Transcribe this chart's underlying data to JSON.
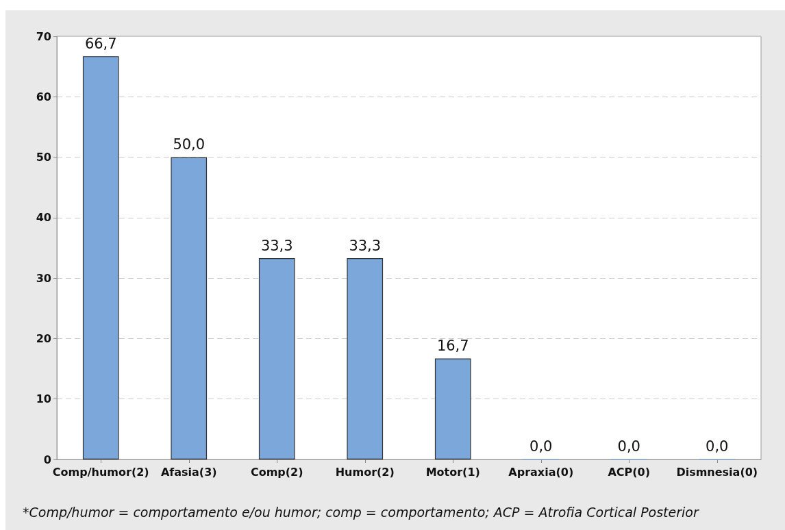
{
  "chart_data": {
    "type": "bar",
    "categories": [
      "Comp/humor(2)",
      "Afasia(3)",
      "Comp(2)",
      "Humor(2)",
      "Motor(1)",
      "Apraxia(0)",
      "ACP(0)",
      "Dismnesia(0)"
    ],
    "values": [
      66.7,
      50.0,
      33.3,
      33.3,
      16.7,
      0.0,
      0.0,
      0.0
    ],
    "value_labels": [
      "66,7",
      "50,0",
      "33,3",
      "33,3",
      "16,7",
      "0,0",
      "0,0",
      "0,0"
    ],
    "color": "#7ba7da",
    "ylim": [
      0,
      70
    ],
    "yticks": [
      0,
      10,
      20,
      30,
      40,
      50,
      60,
      70
    ],
    "grid": "y",
    "annotations": [
      "*Comp/humor = comportamento e/ou humor; comp = comportamento; ACP = Atrofia Cortical Posterior"
    ]
  }
}
